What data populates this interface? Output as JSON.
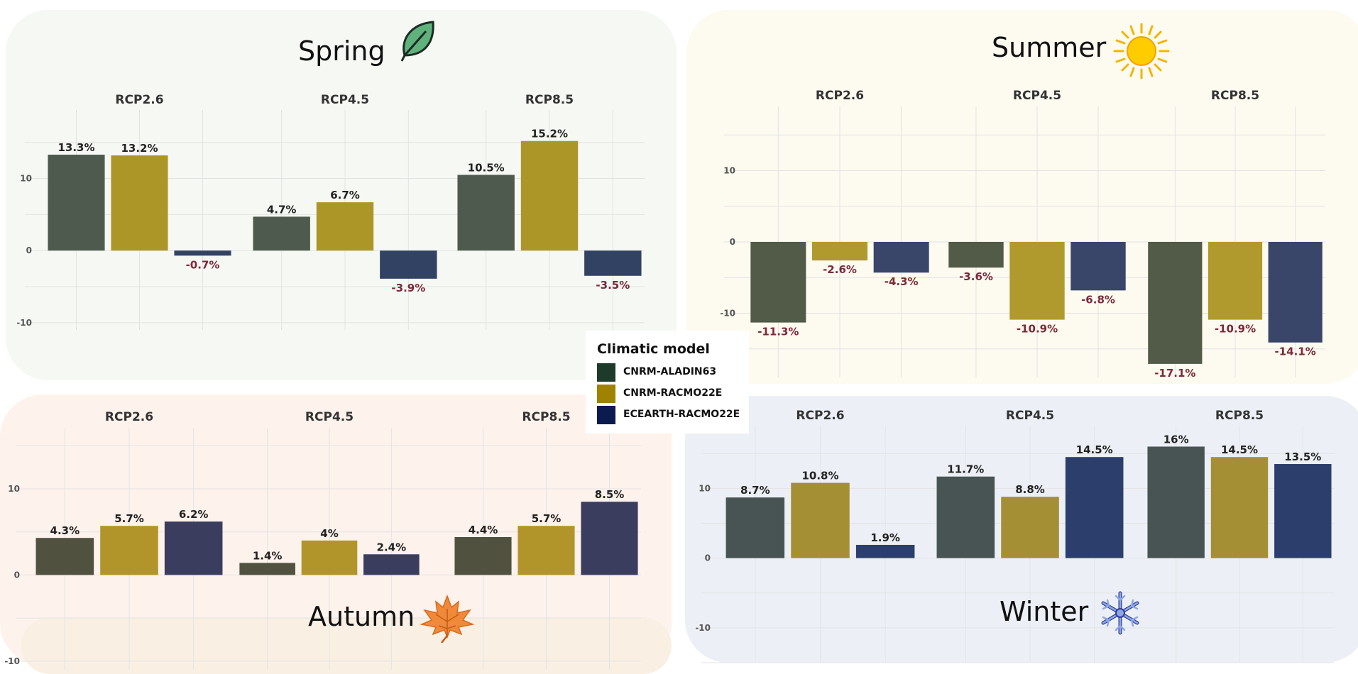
{
  "colors": {
    "model_legend": [
      "#1e3a2a",
      "#9e8200",
      "#0b1a4f"
    ],
    "negative_label": "#7a2a3a",
    "positive_label": "#222222"
  },
  "legend": {
    "title": "Climatic model",
    "items": [
      "CNRM-ALADIN63",
      "CNRM-RACMO22E",
      "ECEARTH-RACMO22E"
    ]
  },
  "icons": {
    "spring": "leaf-icon",
    "summer": "sun-icon",
    "autumn": "maple-leaf-icon",
    "winter": "snowflake-icon"
  },
  "chart_data": [
    {
      "type": "bar",
      "season": "Spring",
      "facets": [
        "RCP2.6",
        "RCP4.5",
        "RCP8.5"
      ],
      "models": [
        "CNRM-ALADIN63",
        "CNRM-RACMO22E",
        "ECEARTH-RACMO22E"
      ],
      "values": [
        [
          13.3,
          13.2,
          -0.7
        ],
        [
          4.7,
          6.7,
          -3.9
        ],
        [
          10.5,
          15.2,
          -3.5
        ]
      ],
      "labels": [
        [
          "13.3%",
          "13.2%",
          "-0.7%"
        ],
        [
          "4.7%",
          "6.7%",
          "-3.9%"
        ],
        [
          "10.5%",
          "15.2%",
          "-3.5%"
        ]
      ],
      "yticks": [
        "-10",
        "0",
        "10"
      ],
      "ylim": [
        -11,
        19.5
      ],
      "bar_colors": [
        "#4e5a4d",
        "#ad9628",
        "#324263"
      ],
      "grid": true
    },
    {
      "type": "bar",
      "season": "Summer",
      "facets": [
        "RCP2.6",
        "RCP4.5",
        "RCP8.5"
      ],
      "models": [
        "CNRM-ALADIN63",
        "CNRM-RACMO22E",
        "ECEARTH-RACMO22E"
      ],
      "values": [
        [
          -11.3,
          -2.6,
          -4.3
        ],
        [
          -3.6,
          -10.9,
          -6.8
        ],
        [
          -17.1,
          -10.9,
          -14.1
        ]
      ],
      "labels": [
        [
          "-11.3%",
          "-2.6%",
          "-4.3%"
        ],
        [
          "-3.6%",
          "-10.9%",
          "-6.8%"
        ],
        [
          "-17.1%",
          "-10.9%",
          "-14.1%"
        ]
      ],
      "yticks": [
        "-10",
        "0",
        "10"
      ],
      "ylim": [
        -19,
        19
      ],
      "bar_colors": [
        "#525a48",
        "#b09a2e",
        "#394669"
      ],
      "grid": true
    },
    {
      "type": "bar",
      "season": "Autumn",
      "facets": [
        "RCP2.6",
        "RCP4.5",
        "RCP8.5"
      ],
      "models": [
        "CNRM-ALADIN63",
        "CNRM-RACMO22E",
        "ECEARTH-RACMO22E"
      ],
      "values": [
        [
          4.3,
          5.7,
          6.2
        ],
        [
          1.4,
          4.0,
          2.4
        ],
        [
          4.4,
          5.7,
          8.5
        ]
      ],
      "labels": [
        [
          "4.3%",
          "5.7%",
          "6.2%"
        ],
        [
          "1.4%",
          "4%",
          "2.4%"
        ],
        [
          "4.4%",
          "5.7%",
          "8.5%"
        ]
      ],
      "yticks": [
        "-10",
        "0",
        "10"
      ],
      "ylim": [
        -11,
        17
      ],
      "bar_colors": [
        "#50523f",
        "#b2952a",
        "#3b3d5e"
      ],
      "grid": true
    },
    {
      "type": "bar",
      "season": "Winter",
      "facets": [
        "RCP2.6",
        "RCP4.5",
        "RCP8.5"
      ],
      "models": [
        "CNRM-ALADIN63",
        "CNRM-RACMO22E",
        "ECEARTH-RACMO22E"
      ],
      "values": [
        [
          8.7,
          10.8,
          1.9
        ],
        [
          11.7,
          8.8,
          14.5
        ],
        [
          16.0,
          14.5,
          13.5
        ]
      ],
      "labels": [
        [
          "8.7%",
          "10.8%",
          "1.9%"
        ],
        [
          "11.7%",
          "8.8%",
          "14.5%"
        ],
        [
          "16%",
          "14.5%",
          "13.5%"
        ]
      ],
      "yticks": [
        "0",
        "10",
        "-10"
      ],
      "ylim": [
        -15,
        19
      ],
      "bar_colors": [
        "#475453",
        "#a58f35",
        "#2c3e6c"
      ],
      "grid": true
    }
  ]
}
